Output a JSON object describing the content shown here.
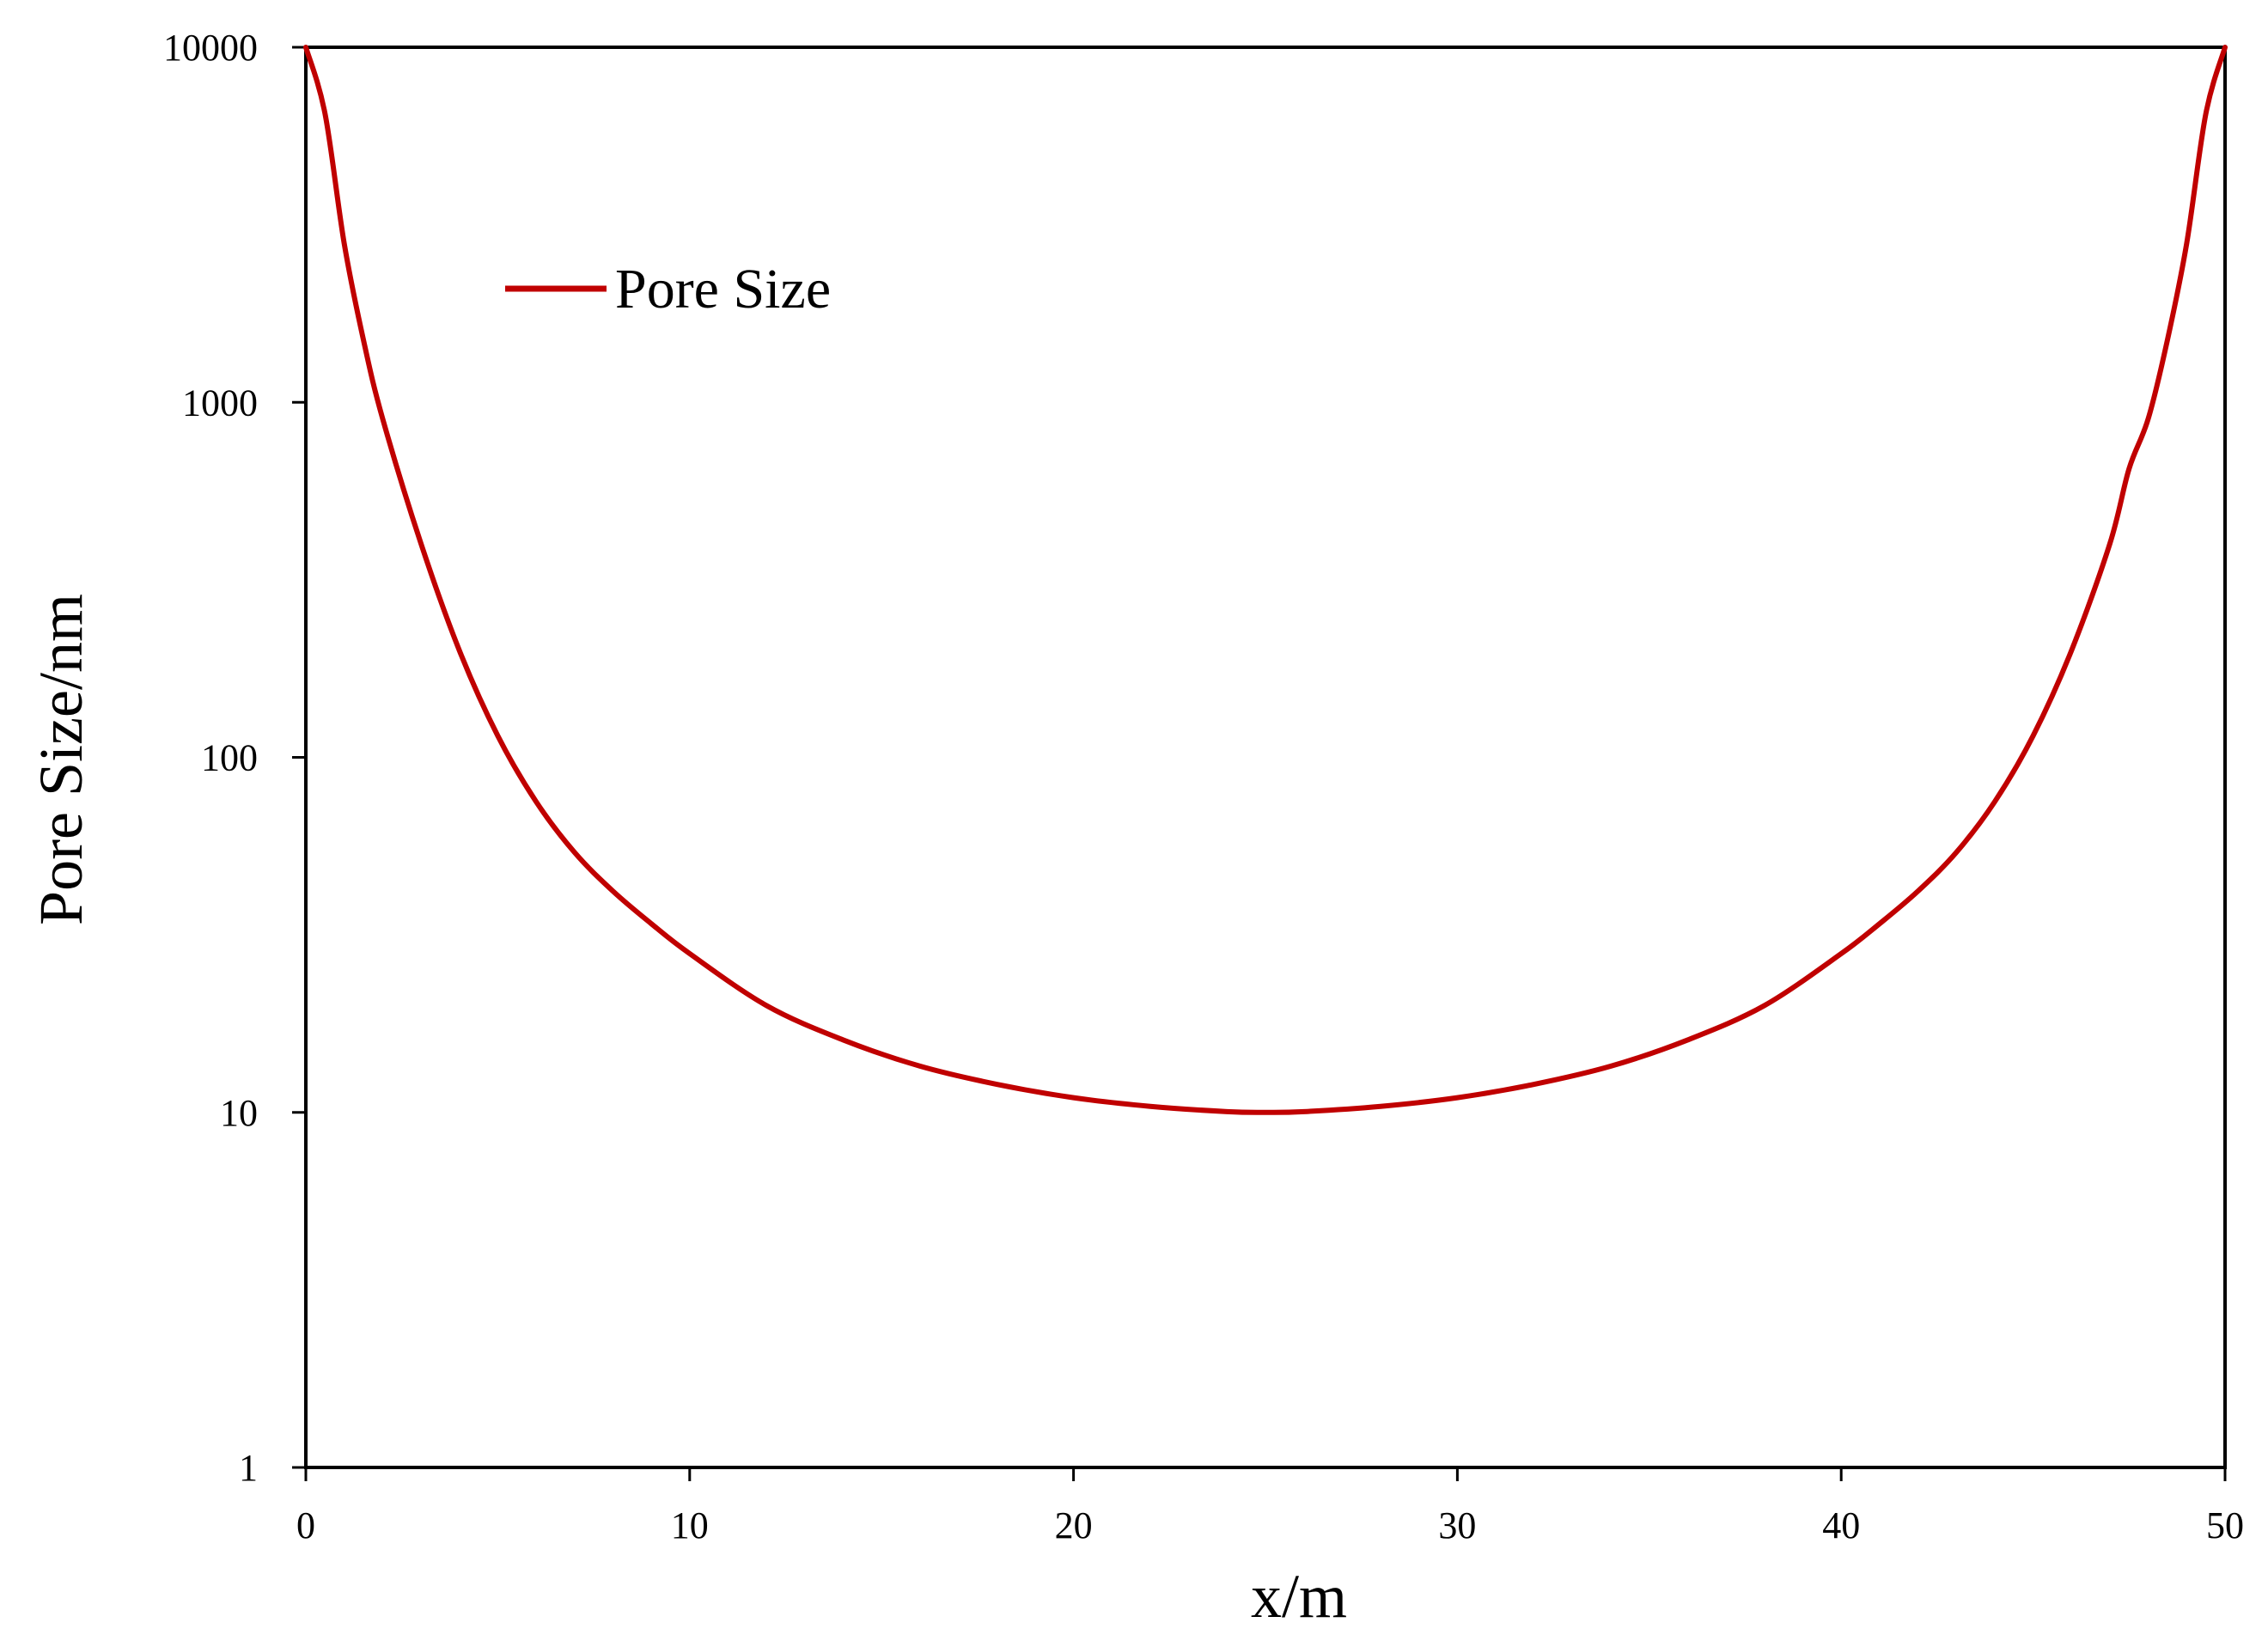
{
  "chart_data": {
    "type": "line",
    "title": "",
    "xlabel": "x/m",
    "ylabel": "Pore Size/nm",
    "xlim": [
      0,
      50
    ],
    "ylim": [
      1,
      10000
    ],
    "yscale": "log",
    "grid": false,
    "legend_position": "top-left",
    "x_ticks": [
      0,
      10,
      20,
      30,
      40,
      50
    ],
    "x_tick_labels": [
      "0",
      "10",
      "20",
      "30",
      "40",
      "50"
    ],
    "y_ticks": [
      1,
      10,
      100,
      1000,
      10000
    ],
    "y_tick_labels": [
      "1",
      "10",
      "100",
      "1000",
      "10000"
    ],
    "series": [
      {
        "name": "Pore Size",
        "color": "#c00000",
        "x": [
          0,
          0.5,
          1,
          1.5,
          2,
          3,
          4,
          5,
          6,
          7,
          8,
          9,
          10,
          12,
          14,
          16,
          18,
          20,
          22,
          24,
          25,
          26,
          28,
          30,
          32,
          34,
          36,
          38,
          40,
          41,
          42,
          43,
          44,
          45,
          46,
          47,
          47.5,
          48,
          48.5,
          49,
          49.5,
          50
        ],
        "values": [
          10000,
          6500,
          2800,
          1500,
          900,
          400,
          200,
          115,
          75,
          54,
          42,
          34,
          28,
          20,
          16,
          13.5,
          12,
          11,
          10.4,
          10.05,
          10,
          10.05,
          10.4,
          11,
          12,
          13.5,
          16,
          20,
          28,
          34,
          42,
          54,
          75,
          115,
          200,
          400,
          650,
          900,
          1500,
          2800,
          6500,
          10000
        ]
      }
    ]
  }
}
